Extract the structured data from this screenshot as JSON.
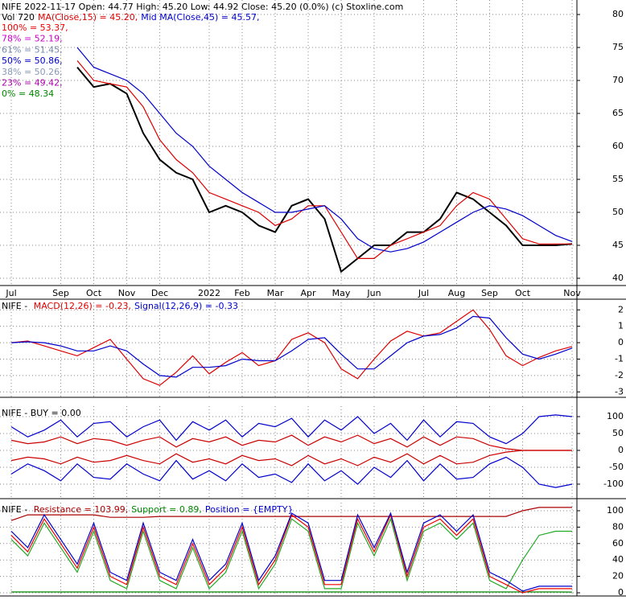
{
  "chart_data": [
    {
      "type": "line",
      "header": [
        {
          "text": "NIFE  2022-11-17 Open: 44.77  High: 45.20  Low: 44.92  Close: 45.20 (0.0%)  (c) Stoxline.com",
          "color": "#000000"
        }
      ],
      "legend": [
        {
          "text": "Vol 720",
          "color": "#000000"
        },
        {
          "text": "MA(Close,15) = 45.20,",
          "color": "#dd0000"
        },
        {
          "text": "Mid MA(Close,45) = 45.57,",
          "color": "#0000cc"
        }
      ],
      "levels": [
        {
          "text": "100% = 53.37,",
          "color": "#ee0000"
        },
        {
          "text": "78% = 52.19,",
          "color": "#cc00cc"
        },
        {
          "text": "61% = 51.45,",
          "color": "#7788aa"
        },
        {
          "text": "50% = 50.86,",
          "color": "#0000cc"
        },
        {
          "text": "38% = 50.26,",
          "color": "#8899bb"
        },
        {
          "text": "23% = 49.42,",
          "color": "#aa00aa"
        },
        {
          "text": "0% = 48.34",
          "color": "#008800"
        }
      ],
      "categories": [
        "Jul",
        null,
        null,
        "Sep",
        null,
        "Oct",
        null,
        "Nov",
        null,
        "Dec",
        null,
        null,
        "2022",
        null,
        "Feb",
        null,
        "Mar",
        null,
        "Apr",
        null,
        "May",
        null,
        "Jun",
        null,
        null,
        "Jul",
        null,
        "Aug",
        null,
        "Sep",
        null,
        "Oct",
        null,
        null,
        "Nov"
      ],
      "series": [
        {
          "color": "#000000",
          "values": [
            null,
            null,
            null,
            null,
            72,
            69,
            69.5,
            68,
            62,
            58,
            56,
            55,
            50,
            51,
            50,
            48,
            47,
            51,
            52,
            49,
            41,
            43,
            45,
            45,
            47,
            47,
            49,
            53,
            52,
            50,
            48,
            45,
            45,
            45,
            45.2
          ]
        },
        {
          "color": "#dd0000",
          "values": [
            null,
            null,
            null,
            null,
            73,
            70,
            69.5,
            69,
            66,
            61,
            58,
            56,
            53,
            52,
            51,
            50,
            48,
            49,
            51,
            51,
            47,
            43,
            43,
            45,
            46,
            47,
            48,
            51,
            53,
            52,
            49,
            46,
            45.2,
            45.2,
            45.2
          ]
        },
        {
          "color": "#0000cc",
          "values": [
            null,
            null,
            null,
            null,
            75,
            72,
            71,
            70,
            68,
            65,
            62,
            60,
            57,
            55,
            53,
            51.5,
            50,
            50,
            50.5,
            51,
            49,
            46,
            44.5,
            44,
            44.5,
            45.5,
            47,
            48.5,
            50,
            51,
            50.5,
            49.5,
            48,
            46.5,
            45.57
          ]
        }
      ],
      "ylim": [
        38.9,
        82.2
      ],
      "yticks": [
        40,
        45,
        50,
        55,
        60,
        65,
        70,
        75,
        80
      ],
      "grid": true
    },
    {
      "type": "line",
      "legend": [
        {
          "text": "NIFE - ",
          "color": "#000000"
        },
        {
          "text": "MACD(12,26) = -0.23,",
          "color": "#dd0000"
        },
        {
          "text": "Signal(12,26,9) = -0.33",
          "color": "#0000cc"
        }
      ],
      "series": [
        {
          "color": "#dd0000",
          "values": [
            0,
            0.1,
            -0.2,
            -0.5,
            -0.8,
            -0.3,
            0.2,
            -1,
            -2.2,
            -2.6,
            -1.8,
            -0.8,
            -1.9,
            -1.2,
            -0.6,
            -1.4,
            -1.1,
            0.2,
            0.6,
            0,
            -1.6,
            -2.2,
            -1,
            0.1,
            0.7,
            0.4,
            0.6,
            1.3,
            2,
            0.8,
            -0.8,
            -1.4,
            -0.9,
            -0.5,
            -0.23
          ]
        },
        {
          "color": "#0000cc",
          "values": [
            0,
            0.05,
            0,
            -0.2,
            -0.5,
            -0.5,
            -0.2,
            -0.5,
            -1.3,
            -2,
            -2.1,
            -1.5,
            -1.5,
            -1.4,
            -1,
            -1.1,
            -1.1,
            -0.5,
            0.2,
            0.3,
            -0.7,
            -1.6,
            -1.6,
            -0.8,
            0,
            0.4,
            0.5,
            0.9,
            1.6,
            1.5,
            0.3,
            -0.7,
            -1,
            -0.7,
            -0.33
          ]
        }
      ],
      "ylim": [
        -3.33,
        2.65
      ],
      "yticks": [
        -3,
        -2,
        -1,
        0,
        1,
        2
      ],
      "grid": true
    },
    {
      "type": "line",
      "legend": [
        {
          "text": "NIFE - BUY = 0.00",
          "color": "#000000"
        }
      ],
      "series": [
        {
          "color": "#0000cc",
          "values": [
            70,
            40,
            60,
            90,
            40,
            80,
            85,
            40,
            70,
            90,
            30,
            85,
            60,
            90,
            40,
            80,
            70,
            95,
            40,
            90,
            60,
            100,
            50,
            80,
            30,
            90,
            40,
            85,
            80,
            40,
            20,
            50,
            100,
            105,
            100
          ]
        },
        {
          "color": "#0000cc",
          "values": [
            -70,
            -40,
            -60,
            -90,
            -40,
            -80,
            -85,
            -40,
            -70,
            -90,
            -30,
            -85,
            -60,
            -90,
            -40,
            -80,
            -70,
            -95,
            -40,
            -90,
            -60,
            -100,
            -50,
            -80,
            -30,
            -90,
            -40,
            -85,
            -80,
            -40,
            -20,
            -50,
            -100,
            -110,
            -100
          ]
        },
        {
          "color": "#cc0000",
          "values": [
            30,
            20,
            25,
            40,
            20,
            35,
            30,
            15,
            30,
            40,
            10,
            35,
            25,
            40,
            15,
            30,
            25,
            45,
            15,
            40,
            25,
            45,
            20,
            35,
            10,
            40,
            15,
            40,
            35,
            15,
            5,
            0,
            0,
            0,
            0
          ]
        },
        {
          "color": "#cc0000",
          "values": [
            -30,
            -20,
            -25,
            -40,
            -20,
            -35,
            -30,
            -15,
            -30,
            -40,
            -10,
            -35,
            -25,
            -40,
            -15,
            -30,
            -25,
            -45,
            -15,
            -40,
            -25,
            -45,
            -20,
            -35,
            -10,
            -40,
            -15,
            -40,
            -35,
            -15,
            -5,
            0,
            0,
            0,
            0
          ]
        }
      ],
      "ylim": [
        -143,
        131
      ],
      "yticks": [
        -100,
        -50,
        0,
        50,
        100
      ],
      "grid": true
    },
    {
      "type": "line",
      "legend": [
        {
          "text": "NIFE - ",
          "color": "#000000"
        },
        {
          "text": "Resistance = 103.99,",
          "color": "#aa0000"
        },
        {
          "text": "Support = 0.89,",
          "color": "#008800"
        },
        {
          "text": "Position = {EMPTY}",
          "color": "#0000cc"
        }
      ],
      "series": [
        {
          "color": "#aa0000",
          "values": [
            88,
            95,
            95,
            95,
            95,
            95,
            92,
            92,
            92,
            93,
            93,
            93,
            93,
            93,
            93,
            93,
            93,
            93,
            93,
            93,
            93,
            93,
            93,
            93,
            93,
            93,
            93,
            93,
            93,
            93,
            93,
            100,
            104,
            104,
            103.99
          ]
        },
        {
          "color": "#008800",
          "values": [
            1,
            1,
            1,
            1,
            1,
            1,
            1,
            1,
            1,
            1,
            1,
            1,
            1,
            1,
            1,
            1,
            1,
            1,
            1,
            1,
            1,
            1,
            1,
            1,
            1,
            1,
            1,
            1,
            1,
            1,
            1,
            1,
            1,
            1,
            0.89
          ]
        },
        {
          "color": "#22aa22",
          "values": [
            65,
            45,
            85,
            55,
            25,
            75,
            15,
            5,
            75,
            15,
            5,
            55,
            5,
            25,
            75,
            5,
            35,
            90,
            75,
            5,
            5,
            85,
            45,
            90,
            15,
            75,
            85,
            65,
            85,
            15,
            5,
            40,
            70,
            75,
            75
          ]
        },
        {
          "color": "#ee0000",
          "values": [
            70,
            50,
            90,
            60,
            30,
            80,
            20,
            10,
            80,
            20,
            10,
            60,
            10,
            30,
            80,
            10,
            40,
            95,
            80,
            10,
            10,
            90,
            50,
            95,
            20,
            80,
            90,
            70,
            90,
            20,
            10,
            0,
            5,
            5,
            5
          ]
        },
        {
          "color": "#0000cc",
          "values": [
            75,
            55,
            95,
            65,
            35,
            85,
            25,
            15,
            85,
            25,
            15,
            65,
            15,
            35,
            85,
            15,
            45,
            97,
            85,
            15,
            15,
            95,
            55,
            97,
            25,
            85,
            95,
            75,
            95,
            25,
            15,
            2,
            8,
            8,
            8
          ]
        }
      ],
      "ylim": [
        -3.9,
        109.8
      ],
      "yticks": [
        0,
        20,
        40,
        60,
        80,
        100
      ],
      "grid": true
    }
  ]
}
